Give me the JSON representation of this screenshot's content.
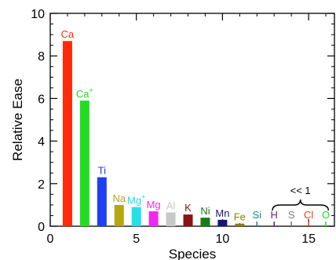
{
  "chart_data": {
    "type": "bar",
    "xlabel": "Species",
    "ylabel": "Relative Ease",
    "xlim": [
      0,
      16.5
    ],
    "ylim": [
      0,
      10
    ],
    "xticks": [
      0,
      5,
      10,
      15
    ],
    "yticks": [
      0,
      2,
      4,
      6,
      8,
      10
    ],
    "grid": false,
    "annotation": "<< 1",
    "bars": [
      {
        "x": 1,
        "label": "Ca",
        "sup": "",
        "value": 8.7,
        "color": "#ff2a0a"
      },
      {
        "x": 2,
        "label": "Ca",
        "sup": "+",
        "value": 5.9,
        "color": "#22dd22"
      },
      {
        "x": 3,
        "label": "Ti",
        "sup": "",
        "value": 2.3,
        "color": "#1f3ff0"
      },
      {
        "x": 4,
        "label": "Na",
        "sup": "",
        "value": 1.0,
        "color": "#b5a711"
      },
      {
        "x": 5,
        "label": "Mg",
        "sup": "+",
        "value": 0.9,
        "color": "#22e0e8"
      },
      {
        "x": 6,
        "label": "Mg",
        "sup": "",
        "value": 0.7,
        "color": "#ef2aef"
      },
      {
        "x": 7,
        "label": "Al",
        "sup": "",
        "value": 0.65,
        "color": "#c8c8c8"
      },
      {
        "x": 8,
        "label": "K",
        "sup": "",
        "value": 0.55,
        "color": "#8a1212"
      },
      {
        "x": 9,
        "label": "Ni",
        "sup": "",
        "value": 0.4,
        "color": "#187a18"
      },
      {
        "x": 10,
        "label": "Mn",
        "sup": "",
        "value": 0.3,
        "color": "#15157a"
      },
      {
        "x": 11,
        "label": "Fe",
        "sup": "",
        "value": 0.12,
        "color": "#8a7c10"
      },
      {
        "x": 12,
        "label": "Si",
        "sup": "",
        "value": 0.0,
        "color": "#158a8a"
      },
      {
        "x": 13,
        "label": "H",
        "sup": "",
        "value": 0.0,
        "color": "#7a1a7a"
      },
      {
        "x": 14,
        "label": "S",
        "sup": "",
        "value": 0.0,
        "color": "#7a7a7a"
      },
      {
        "x": 15,
        "label": "Cl",
        "sup": "",
        "value": 0.0,
        "color": "#e8401a"
      },
      {
        "x": 16,
        "label": "O",
        "sup": "",
        "value": 0.0,
        "color": "#22dd22"
      }
    ]
  }
}
